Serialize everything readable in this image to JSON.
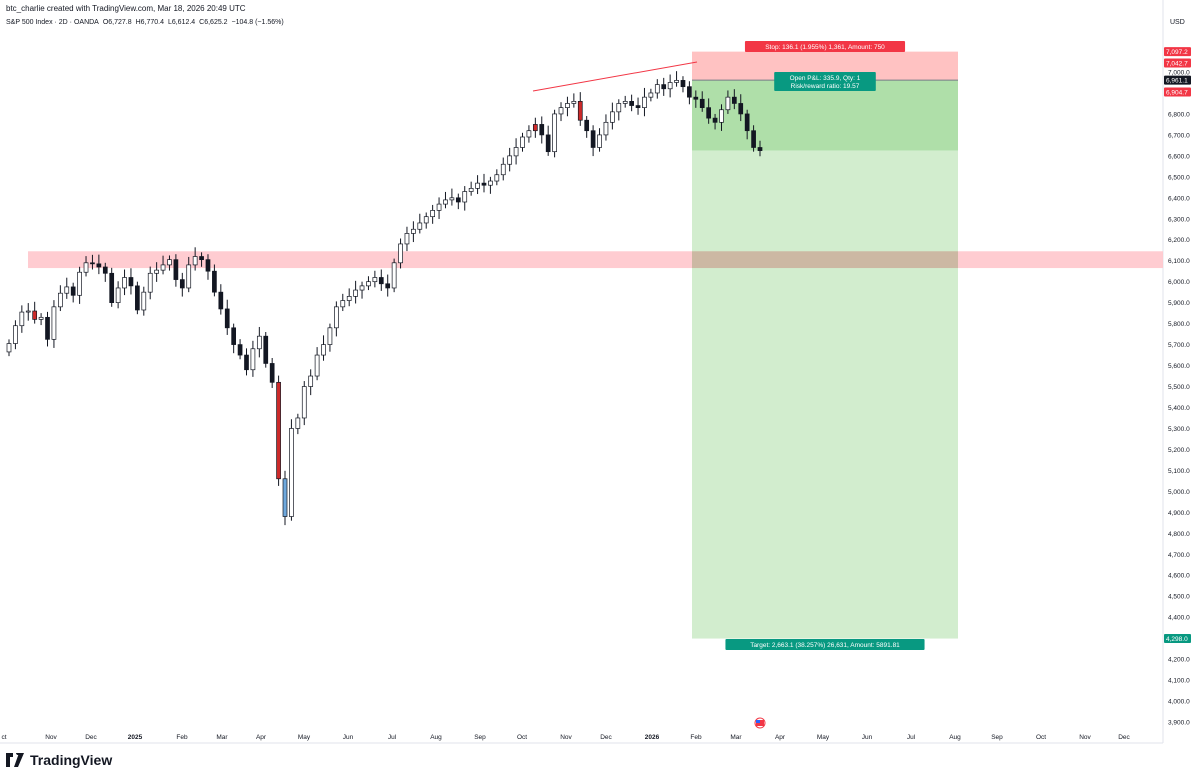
{
  "header": {
    "created_by": "btc_charlie created with TradingView.com, Mar 18, 2026 20:49 UTC",
    "symbol": "S&P 500 Index · 2D · OANDA",
    "open": "O6,727.8",
    "high": "H6,770.4",
    "low": "L6,612.4",
    "close": "C6,625.2",
    "change": "−104.8 (−1.56%)"
  },
  "brand": {
    "name": "TradingView"
  },
  "colors": {
    "up_candle": "#ffffff",
    "down_candle": "#131722",
    "highlight_blue": "#6fa8dc",
    "highlight_red": "#cc2a2a",
    "stop_zone": "#ffb3b3",
    "target_zone": "#cdebc9",
    "target_zone_dark": "#a6dca0",
    "resistance_zone": "#ffc7cc",
    "label_red": "#f23645",
    "label_green": "#089981",
    "label_dark": "#131722"
  },
  "chart_data": {
    "type": "candlestick",
    "title": "S&P 500 Index · 2D · OANDA",
    "currency": "USD",
    "y_axis": {
      "labels": [
        "7,000.0",
        "6,900.0",
        "6,800.0",
        "6,700.0",
        "6,600.0",
        "6,500.0",
        "6,400.0",
        "6,300.0",
        "6,200.0",
        "6,100.0",
        "6,000.0",
        "5,900.0",
        "5,800.0",
        "5,700.0",
        "5,600.0",
        "5,500.0",
        "5,400.0",
        "5,300.0",
        "5,200.0",
        "5,100.0",
        "5,000.0",
        "4,900.0",
        "4,800.0",
        "4,700.0",
        "4,600.0",
        "4,500.0",
        "4,400.0",
        "4,300.0",
        "4,200.0",
        "4,100.0",
        "4,000.0",
        "3,900.0"
      ],
      "ylim": [
        3870,
        7180
      ]
    },
    "x_axis": {
      "labels": [
        "ct",
        "Nov",
        "Dec",
        "2025",
        "Feb",
        "Mar",
        "Apr",
        "May",
        "Jun",
        "Jul",
        "Aug",
        "Sep",
        "Oct",
        "Nov",
        "Dec",
        "2026",
        "Feb",
        "Mar",
        "Apr",
        "May",
        "Jun",
        "Jul",
        "Aug",
        "Sep",
        "Oct",
        "Nov",
        "Dec"
      ],
      "bold_labels": [
        "2025",
        "2026"
      ]
    },
    "price_labels": [
      {
        "text": "7,097.2",
        "value": 7097.2,
        "color": "#f23645"
      },
      {
        "text": "7,042.7",
        "value": 7042.7,
        "color": "#f23645"
      },
      {
        "text": "6,961.1",
        "value": 6961.1,
        "color": "#131722"
      },
      {
        "text": "6,904.7",
        "value": 6904.7,
        "color": "#f23645"
      },
      {
        "text": "4,298.0",
        "value": 4298.0,
        "color": "#089981"
      }
    ],
    "position": {
      "entry": 6961.1,
      "stop": 7097.2,
      "target": 4298.0,
      "current": 6625.2,
      "stop_label": "Stop: 136.1 (1.955%) 1,361, Amount: 750",
      "pnl_label": "Open P&L: 335.9, Qty: 1",
      "rr_label": "Risk/reward ratio: 19.57",
      "target_label": "Target: 2,663.1 (38.257%) 26,631, Amount: 5891.81"
    },
    "resistance_zone": {
      "low": 6065,
      "high": 6145
    },
    "trendline": {
      "from": [
        "Oct 2025",
        6910
      ],
      "to": [
        "Jan 2026",
        7055
      ]
    },
    "closes_approx": [
      5705,
      5790,
      5855,
      5860,
      5820,
      5830,
      5725,
      5880,
      5945,
      5975,
      5935,
      6045,
      6090,
      6085,
      6070,
      6040,
      5900,
      5970,
      6020,
      5980,
      5865,
      5950,
      6040,
      6055,
      6080,
      6105,
      6010,
      5970,
      6080,
      6120,
      6105,
      6050,
      5950,
      5870,
      5780,
      5700,
      5650,
      5580,
      5680,
      5740,
      5610,
      5520,
      5060,
      4880,
      5300,
      5350,
      5500,
      5550,
      5650,
      5700,
      5780,
      5880,
      5910,
      5930,
      5960,
      5980,
      6000,
      6020,
      5990,
      5970,
      6090,
      6180,
      6230,
      6250,
      6280,
      6310,
      6340,
      6370,
      6390,
      6400,
      6380,
      6430,
      6445,
      6470,
      6460,
      6480,
      6510,
      6560,
      6600,
      6640,
      6690,
      6720,
      6750,
      6700,
      6620,
      6800,
      6830,
      6850,
      6860,
      6770,
      6720,
      6640,
      6700,
      6760,
      6810,
      6850,
      6860,
      6840,
      6830,
      6880,
      6900,
      6940,
      6920,
      6950,
      6960,
      6930,
      6880,
      6870,
      6830,
      6780,
      6760,
      6820,
      6880,
      6850,
      6800,
      6720,
      6640,
      6625
    ],
    "highlighted_candles": [
      {
        "index": 4,
        "color": "#cc2a2a"
      },
      {
        "index": 42,
        "color": "#cc2a2a"
      },
      {
        "index": 43,
        "color": "#6fa8dc"
      },
      {
        "index": 82,
        "color": "#cc2a2a"
      },
      {
        "index": 89,
        "color": "#cc2a2a"
      }
    ]
  }
}
